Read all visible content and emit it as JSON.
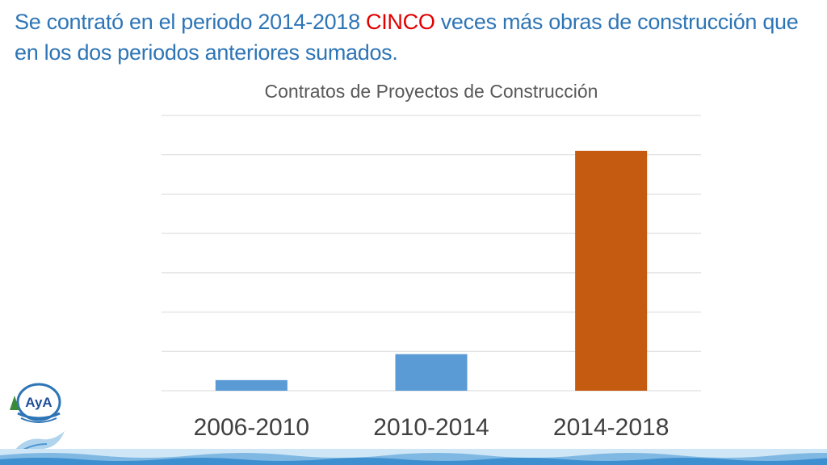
{
  "headline": {
    "part1": "Se contrató en el periodo 2014-2018 ",
    "emphasis": "CINCO",
    "part2": " veces más obras de construcción que en los dos periodos anteriores sumados."
  },
  "colors": {
    "headline": "#2e75b6",
    "emphasis": "#e00000",
    "bar_default": "#5b9bd5",
    "bar_highlight": "#c55a11",
    "gridline": "#d9d9d9",
    "title": "#595959"
  },
  "logo": {
    "text": "AyA"
  },
  "chart_data": {
    "type": "bar",
    "title": "Contratos de Proyectos de Construcción",
    "categories": [
      "2006-2010",
      "2010-2014",
      "2014-2018"
    ],
    "values": [
      0.27,
      0.93,
      6.1
    ],
    "highlight_index": 2,
    "xlabel": "",
    "ylabel": "",
    "ylim": [
      0,
      7
    ],
    "grid": true,
    "ytick_labels_shown": false,
    "legend": "none"
  }
}
